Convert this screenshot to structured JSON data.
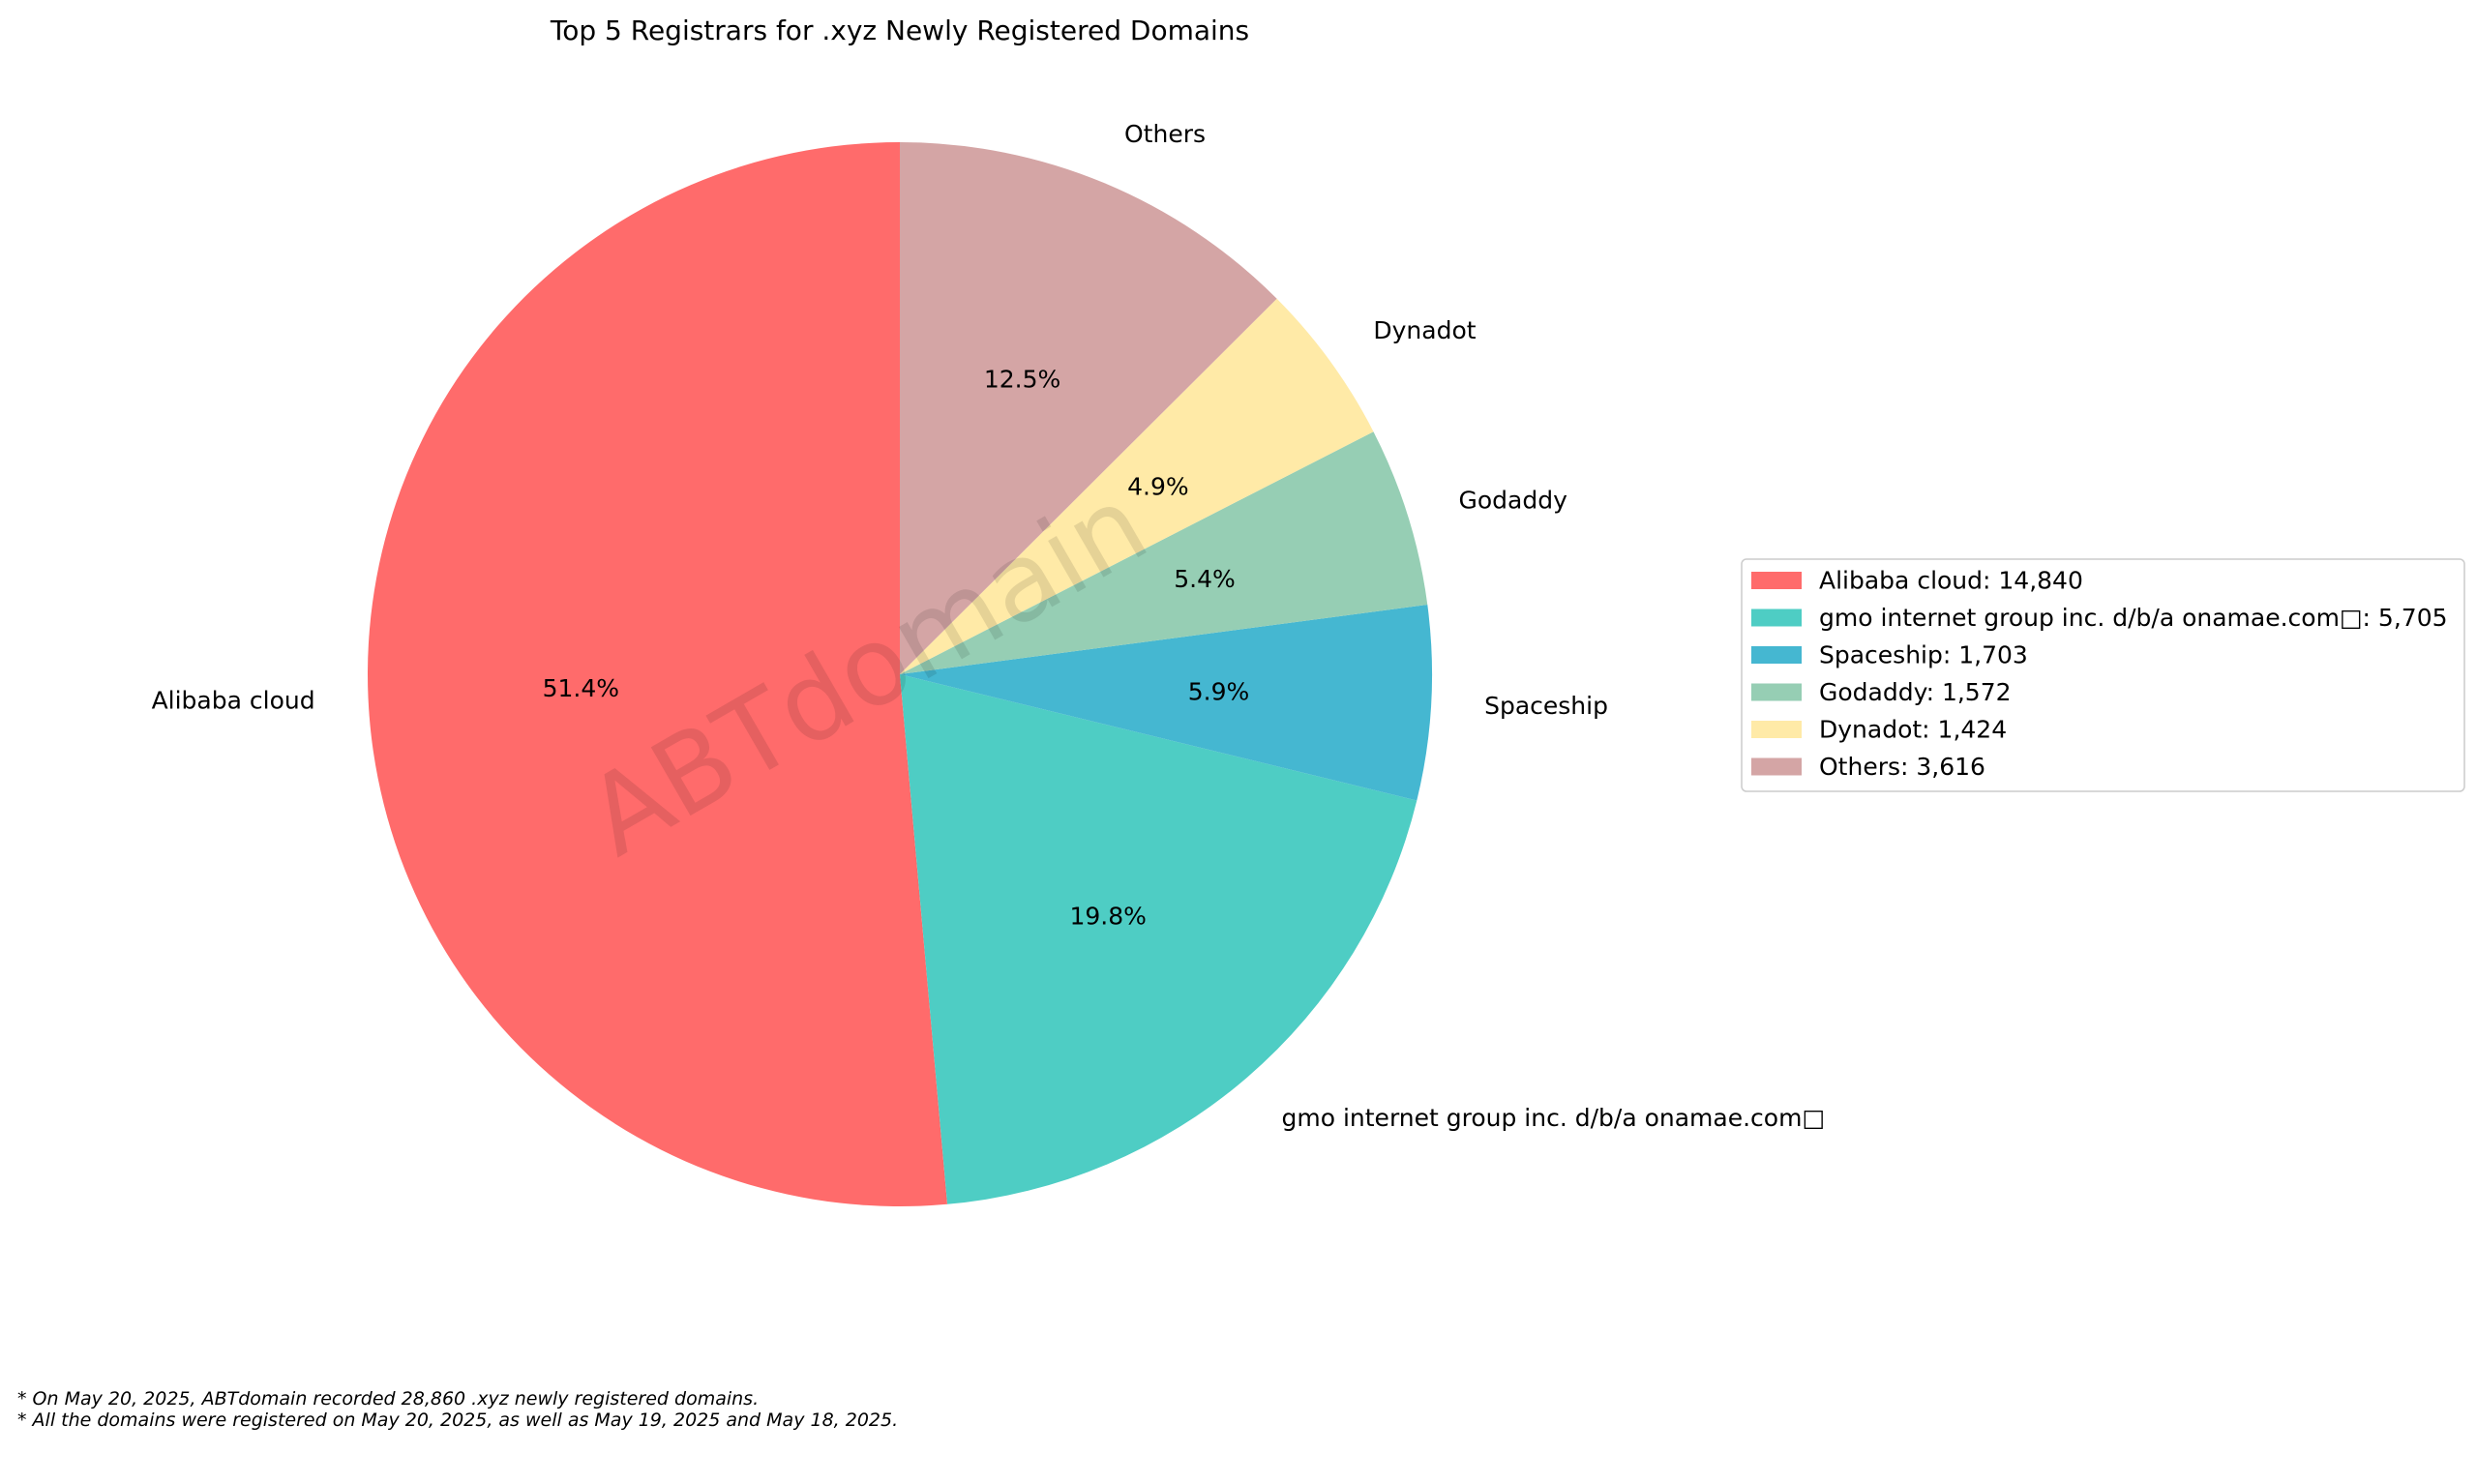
{
  "chart_data": {
    "type": "pie",
    "title": "Top 5 Registrars for .xyz Newly Registered Domains",
    "watermark": "ABTdomain",
    "slices": [
      {
        "label": "Alibaba cloud",
        "value": 14840,
        "value_text": "14,840",
        "percent_text": "51.4%",
        "color": "#FF6B6B"
      },
      {
        "label": "gmo internet group inc. d/b/a onamae.com□",
        "value": 5705,
        "value_text": "5,705",
        "percent_text": "19.8%",
        "color": "#4ECDC4"
      },
      {
        "label": "Spaceship",
        "value": 1703,
        "value_text": "1,703",
        "percent_text": "5.9%",
        "color": "#45B7D1"
      },
      {
        "label": "Godaddy",
        "value": 1572,
        "value_text": "1,572",
        "percent_text": "5.4%",
        "color": "#96CEB4"
      },
      {
        "label": "Dynadot",
        "value": 1424,
        "value_text": "1,424",
        "percent_text": "4.9%",
        "color": "#FFEAA7"
      },
      {
        "label": "Others",
        "value": 3616,
        "value_text": "3,616",
        "percent_text": "12.5%",
        "color": "#D4A5A5"
      }
    ],
    "legend_position": "right",
    "footnotes": [
      "* On May 20, 2025, ABTdomain recorded 28,860 .xyz newly registered domains.",
      "* All the domains were registered on May 20, 2025, as well as May 19, 2025 and May 18, 2025."
    ]
  }
}
